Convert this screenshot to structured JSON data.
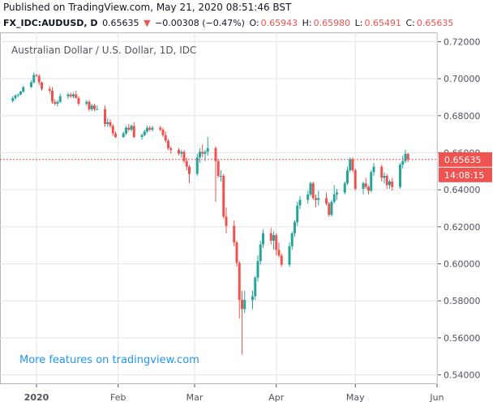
{
  "header": {
    "published": "Published on TradingView.com, May 21, 2020 08:51:46 BST",
    "symbol": "FX_IDC:AUDUSD, D",
    "last": "0.65635",
    "change_arrow": "▼",
    "change": "−0.00308 (−0.47%)",
    "o_label": "O:",
    "o_val": "0.65943",
    "h_label": "H:",
    "h_val": "0.65980",
    "l_label": "L:",
    "l_val": "0.65491",
    "c_label": "C:",
    "c_val": "0.65635"
  },
  "chart_title": "Australian Dollar / U.S. Dollar, 1D, IDC",
  "watermark": "More features on tradingview.com",
  "price_badge": "0.65635",
  "time_badge": "14:08:15",
  "colors": {
    "up": "#26a69a",
    "down": "#ef5350",
    "grid": "#e0e3eb",
    "axis": "#50535e",
    "watermark": "#2196f3",
    "badge": "#ef5350"
  },
  "chart_data": {
    "type": "candlestick",
    "title": "Australian Dollar / U.S. Dollar, 1D, IDC",
    "ylim": [
      0.535,
      0.725
    ],
    "y_ticks": [
      "0.72000",
      "0.70000",
      "0.68000",
      "0.66000",
      "0.64000",
      "0.62000",
      "0.60000",
      "0.58000",
      "0.56000",
      "0.54000"
    ],
    "x_ticks": [
      "2020",
      "Feb",
      "Mar",
      "Apr",
      "May",
      "Jun"
    ],
    "last_price": 0.65635,
    "series": [
      {
        "date": "2019-12-23",
        "o": 0.688,
        "h": 0.6905,
        "l": 0.687,
        "c": 0.6895
      },
      {
        "date": "2019-12-24",
        "o": 0.6895,
        "h": 0.6915,
        "l": 0.6885,
        "c": 0.691
      },
      {
        "date": "2019-12-25",
        "o": 0.691,
        "h": 0.692,
        "l": 0.69,
        "c": 0.6915
      },
      {
        "date": "2019-12-26",
        "o": 0.6915,
        "h": 0.6935,
        "l": 0.691,
        "c": 0.693
      },
      {
        "date": "2019-12-27",
        "o": 0.693,
        "h": 0.696,
        "l": 0.6925,
        "c": 0.6955
      },
      {
        "date": "2019-12-30",
        "o": 0.6955,
        "h": 0.699,
        "l": 0.695,
        "c": 0.698
      },
      {
        "date": "2019-12-31",
        "o": 0.698,
        "h": 0.7032,
        "l": 0.6975,
        "c": 0.702
      },
      {
        "date": "2020-01-01",
        "o": 0.702,
        "h": 0.7025,
        "l": 0.701,
        "c": 0.7015
      },
      {
        "date": "2020-01-02",
        "o": 0.7015,
        "h": 0.7025,
        "l": 0.6965,
        "c": 0.698
      },
      {
        "date": "2020-01-03",
        "o": 0.698,
        "h": 0.6985,
        "l": 0.6935,
        "c": 0.6945
      },
      {
        "date": "2020-01-06",
        "o": 0.6945,
        "h": 0.696,
        "l": 0.692,
        "c": 0.6935
      },
      {
        "date": "2020-01-07",
        "o": 0.6935,
        "h": 0.6955,
        "l": 0.6865,
        "c": 0.6875
      },
      {
        "date": "2020-01-08",
        "o": 0.6875,
        "h": 0.689,
        "l": 0.6855,
        "c": 0.6865
      },
      {
        "date": "2020-01-09",
        "o": 0.6865,
        "h": 0.6885,
        "l": 0.685,
        "c": 0.6875
      },
      {
        "date": "2020-01-10",
        "o": 0.6875,
        "h": 0.692,
        "l": 0.687,
        "c": 0.6905
      },
      {
        "date": "2020-01-13",
        "o": 0.6905,
        "h": 0.6925,
        "l": 0.689,
        "c": 0.6915
      },
      {
        "date": "2020-01-14",
        "o": 0.6915,
        "h": 0.6925,
        "l": 0.6895,
        "c": 0.6905
      },
      {
        "date": "2020-01-15",
        "o": 0.6905,
        "h": 0.6925,
        "l": 0.6895,
        "c": 0.6915
      },
      {
        "date": "2020-01-16",
        "o": 0.6915,
        "h": 0.6935,
        "l": 0.6905,
        "c": 0.6895
      },
      {
        "date": "2020-01-17",
        "o": 0.6895,
        "h": 0.6905,
        "l": 0.6855,
        "c": 0.6865
      },
      {
        "date": "2020-01-20",
        "o": 0.6865,
        "h": 0.6885,
        "l": 0.6855,
        "c": 0.6875
      },
      {
        "date": "2020-01-21",
        "o": 0.6875,
        "h": 0.6885,
        "l": 0.6825,
        "c": 0.6835
      },
      {
        "date": "2020-01-22",
        "o": 0.6835,
        "h": 0.6865,
        "l": 0.6825,
        "c": 0.6855
      },
      {
        "date": "2020-01-23",
        "o": 0.6855,
        "h": 0.6865,
        "l": 0.6825,
        "c": 0.6835
      },
      {
        "date": "2020-01-24",
        "o": 0.6835,
        "h": 0.6855,
        "l": 0.6835,
        "c": 0.6835
      },
      {
        "date": "2020-01-27",
        "o": 0.6835,
        "h": 0.6855,
        "l": 0.674,
        "c": 0.6755
      },
      {
        "date": "2020-01-28",
        "o": 0.6755,
        "h": 0.6785,
        "l": 0.674,
        "c": 0.6765
      },
      {
        "date": "2020-01-29",
        "o": 0.6765,
        "h": 0.678,
        "l": 0.6735,
        "c": 0.6745
      },
      {
        "date": "2020-01-30",
        "o": 0.6745,
        "h": 0.6755,
        "l": 0.669,
        "c": 0.6705
      },
      {
        "date": "2020-01-31",
        "o": 0.6705,
        "h": 0.6715,
        "l": 0.668,
        "c": 0.6685
      },
      {
        "date": "2020-02-03",
        "o": 0.6685,
        "h": 0.6715,
        "l": 0.668,
        "c": 0.6705
      },
      {
        "date": "2020-02-04",
        "o": 0.6705,
        "h": 0.6745,
        "l": 0.6695,
        "c": 0.6735
      },
      {
        "date": "2020-02-05",
        "o": 0.6735,
        "h": 0.6755,
        "l": 0.6715,
        "c": 0.6725
      },
      {
        "date": "2020-02-06",
        "o": 0.6725,
        "h": 0.6755,
        "l": 0.6715,
        "c": 0.6745
      },
      {
        "date": "2020-02-07",
        "o": 0.6745,
        "h": 0.6765,
        "l": 0.668,
        "c": 0.6685
      },
      {
        "date": "2020-02-10",
        "o": 0.6685,
        "h": 0.6705,
        "l": 0.667,
        "c": 0.6695
      },
      {
        "date": "2020-02-11",
        "o": 0.6695,
        "h": 0.6725,
        "l": 0.669,
        "c": 0.6715
      },
      {
        "date": "2020-02-12",
        "o": 0.6715,
        "h": 0.6745,
        "l": 0.6705,
        "c": 0.6735
      },
      {
        "date": "2020-02-13",
        "o": 0.6735,
        "h": 0.6745,
        "l": 0.6715,
        "c": 0.6725
      },
      {
        "date": "2020-02-14",
        "o": 0.6725,
        "h": 0.6745,
        "l": 0.6715,
        "c": 0.6735
      },
      {
        "date": "2020-02-17",
        "o": 0.6735,
        "h": 0.6745,
        "l": 0.6715,
        "c": 0.6725
      },
      {
        "date": "2020-02-18",
        "o": 0.6725,
        "h": 0.6735,
        "l": 0.6685,
        "c": 0.6695
      },
      {
        "date": "2020-02-19",
        "o": 0.6695,
        "h": 0.6715,
        "l": 0.6655,
        "c": 0.6665
      },
      {
        "date": "2020-02-20",
        "o": 0.6665,
        "h": 0.6675,
        "l": 0.6615,
        "c": 0.6625
      },
      {
        "date": "2020-02-21",
        "o": 0.6625,
        "h": 0.6635,
        "l": 0.6595,
        "c": 0.6615
      },
      {
        "date": "2020-02-24",
        "o": 0.6615,
        "h": 0.6625,
        "l": 0.6585,
        "c": 0.6595
      },
      {
        "date": "2020-02-25",
        "o": 0.6595,
        "h": 0.6615,
        "l": 0.6575,
        "c": 0.6605
      },
      {
        "date": "2020-02-26",
        "o": 0.6605,
        "h": 0.6615,
        "l": 0.6545,
        "c": 0.6555
      },
      {
        "date": "2020-02-27",
        "o": 0.6555,
        "h": 0.6575,
        "l": 0.6505,
        "c": 0.6525
      },
      {
        "date": "2020-02-28",
        "o": 0.6525,
        "h": 0.6535,
        "l": 0.6435,
        "c": 0.6485
      },
      {
        "date": "2020-03-02",
        "o": 0.6485,
        "h": 0.6595,
        "l": 0.6475,
        "c": 0.6575
      },
      {
        "date": "2020-03-03",
        "o": 0.6575,
        "h": 0.6625,
        "l": 0.6545,
        "c": 0.6605
      },
      {
        "date": "2020-03-04",
        "o": 0.6605,
        "h": 0.6645,
        "l": 0.6575,
        "c": 0.6595
      },
      {
        "date": "2020-03-05",
        "o": 0.6595,
        "h": 0.6615,
        "l": 0.6555,
        "c": 0.6605
      },
      {
        "date": "2020-03-06",
        "o": 0.6605,
        "h": 0.6685,
        "l": 0.6585,
        "c": 0.6625
      },
      {
        "date": "2020-03-09",
        "o": 0.6625,
        "h": 0.6635,
        "l": 0.6335,
        "c": 0.6555
      },
      {
        "date": "2020-03-10",
        "o": 0.6555,
        "h": 0.6565,
        "l": 0.6465,
        "c": 0.6475
      },
      {
        "date": "2020-03-11",
        "o": 0.6475,
        "h": 0.6505,
        "l": 0.6445,
        "c": 0.6475
      },
      {
        "date": "2020-03-12",
        "o": 0.6475,
        "h": 0.6485,
        "l": 0.6245,
        "c": 0.6255
      },
      {
        "date": "2020-03-13",
        "o": 0.6255,
        "h": 0.6305,
        "l": 0.6165,
        "c": 0.6205
      },
      {
        "date": "2020-03-16",
        "o": 0.6205,
        "h": 0.6235,
        "l": 0.6095,
        "c": 0.6115
      },
      {
        "date": "2020-03-17",
        "o": 0.6115,
        "h": 0.6125,
        "l": 0.5985,
        "c": 0.6005
      },
      {
        "date": "2020-03-18",
        "o": 0.6005,
        "h": 0.6015,
        "l": 0.5705,
        "c": 0.5805
      },
      {
        "date": "2020-03-19",
        "o": 0.5805,
        "h": 0.5855,
        "l": 0.551,
        "c": 0.5755
      },
      {
        "date": "2020-03-20",
        "o": 0.5755,
        "h": 0.5855,
        "l": 0.5735,
        "c": 0.5805
      },
      {
        "date": "2020-03-23",
        "o": 0.5805,
        "h": 0.5855,
        "l": 0.5755,
        "c": 0.5825
      },
      {
        "date": "2020-03-24",
        "o": 0.5825,
        "h": 0.5935,
        "l": 0.5805,
        "c": 0.5925
      },
      {
        "date": "2020-03-25",
        "o": 0.5925,
        "h": 0.6045,
        "l": 0.5905,
        "c": 0.6015
      },
      {
        "date": "2020-03-26",
        "o": 0.6015,
        "h": 0.6125,
        "l": 0.5995,
        "c": 0.6105
      },
      {
        "date": "2020-03-27",
        "o": 0.6105,
        "h": 0.6185,
        "l": 0.6085,
        "c": 0.6165
      },
      {
        "date": "2020-03-30",
        "o": 0.6165,
        "h": 0.6195,
        "l": 0.6105,
        "c": 0.6125
      },
      {
        "date": "2020-03-31",
        "o": 0.6125,
        "h": 0.6175,
        "l": 0.6075,
        "c": 0.6155
      },
      {
        "date": "2020-04-01",
        "o": 0.6155,
        "h": 0.6165,
        "l": 0.6045,
        "c": 0.6075
      },
      {
        "date": "2020-04-02",
        "o": 0.6075,
        "h": 0.6115,
        "l": 0.6035,
        "c": 0.6045
      },
      {
        "date": "2020-04-03",
        "o": 0.6045,
        "h": 0.6055,
        "l": 0.5985,
        "c": 0.5995
      },
      {
        "date": "2020-04-06",
        "o": 0.5995,
        "h": 0.6115,
        "l": 0.5985,
        "c": 0.6095
      },
      {
        "date": "2020-04-07",
        "o": 0.6095,
        "h": 0.6175,
        "l": 0.6075,
        "c": 0.6165
      },
      {
        "date": "2020-04-08",
        "o": 0.6165,
        "h": 0.6235,
        "l": 0.6145,
        "c": 0.6225
      },
      {
        "date": "2020-04-09",
        "o": 0.6225,
        "h": 0.6335,
        "l": 0.6205,
        "c": 0.6315
      },
      {
        "date": "2020-04-10",
        "o": 0.6315,
        "h": 0.6365,
        "l": 0.6295,
        "c": 0.6345
      },
      {
        "date": "2020-04-13",
        "o": 0.6345,
        "h": 0.6395,
        "l": 0.6325,
        "c": 0.6375
      },
      {
        "date": "2020-04-14",
        "o": 0.6375,
        "h": 0.6445,
        "l": 0.6365,
        "c": 0.6435
      },
      {
        "date": "2020-04-15",
        "o": 0.6435,
        "h": 0.6445,
        "l": 0.6345,
        "c": 0.6355
      },
      {
        "date": "2020-04-16",
        "o": 0.6355,
        "h": 0.6375,
        "l": 0.6305,
        "c": 0.6345
      },
      {
        "date": "2020-04-17",
        "o": 0.6345,
        "h": 0.6395,
        "l": 0.6315,
        "c": 0.6355
      },
      {
        "date": "2020-04-20",
        "o": 0.6355,
        "h": 0.6385,
        "l": 0.6315,
        "c": 0.6325
      },
      {
        "date": "2020-04-21",
        "o": 0.6325,
        "h": 0.6335,
        "l": 0.6255,
        "c": 0.6265
      },
      {
        "date": "2020-04-22",
        "o": 0.6265,
        "h": 0.6345,
        "l": 0.6255,
        "c": 0.6335
      },
      {
        "date": "2020-04-23",
        "o": 0.6335,
        "h": 0.6425,
        "l": 0.6325,
        "c": 0.6375
      },
      {
        "date": "2020-04-24",
        "o": 0.6375,
        "h": 0.6405,
        "l": 0.6345,
        "c": 0.6385
      },
      {
        "date": "2020-04-27",
        "o": 0.6385,
        "h": 0.6445,
        "l": 0.6375,
        "c": 0.6435
      },
      {
        "date": "2020-04-28",
        "o": 0.6435,
        "h": 0.6525,
        "l": 0.6425,
        "c": 0.6505
      },
      {
        "date": "2020-04-29",
        "o": 0.6505,
        "h": 0.6575,
        "l": 0.6495,
        "c": 0.6565
      },
      {
        "date": "2020-04-30",
        "o": 0.6565,
        "h": 0.6575,
        "l": 0.6495,
        "c": 0.6505
      },
      {
        "date": "2020-05-01",
        "o": 0.6505,
        "h": 0.6515,
        "l": 0.6395,
        "c": 0.6405
      },
      {
        "date": "2020-05-04",
        "o": 0.6405,
        "h": 0.6445,
        "l": 0.6375,
        "c": 0.6435
      },
      {
        "date": "2020-05-05",
        "o": 0.6435,
        "h": 0.6465,
        "l": 0.6405,
        "c": 0.6415
      },
      {
        "date": "2020-05-06",
        "o": 0.6415,
        "h": 0.6425,
        "l": 0.6375,
        "c": 0.6395
      },
      {
        "date": "2020-05-07",
        "o": 0.6395,
        "h": 0.6505,
        "l": 0.6385,
        "c": 0.6495
      },
      {
        "date": "2020-05-08",
        "o": 0.6495,
        "h": 0.6545,
        "l": 0.6475,
        "c": 0.6525
      },
      {
        "date": "2020-05-11",
        "o": 0.6525,
        "h": 0.6535,
        "l": 0.6445,
        "c": 0.6465
      },
      {
        "date": "2020-05-12",
        "o": 0.6465,
        "h": 0.6495,
        "l": 0.6435,
        "c": 0.6475
      },
      {
        "date": "2020-05-13",
        "o": 0.6475,
        "h": 0.6485,
        "l": 0.6405,
        "c": 0.6425
      },
      {
        "date": "2020-05-14",
        "o": 0.6425,
        "h": 0.6455,
        "l": 0.6405,
        "c": 0.6445
      },
      {
        "date": "2020-05-15",
        "o": 0.6445,
        "h": 0.6465,
        "l": 0.6395,
        "c": 0.6415
      },
      {
        "date": "2020-05-18",
        "o": 0.6415,
        "h": 0.6545,
        "l": 0.6405,
        "c": 0.6535
      },
      {
        "date": "2020-05-19",
        "o": 0.6535,
        "h": 0.6585,
        "l": 0.6515,
        "c": 0.6555
      },
      {
        "date": "2020-05-20",
        "o": 0.6555,
        "h": 0.6615,
        "l": 0.6545,
        "c": 0.6594
      },
      {
        "date": "2020-05-21",
        "o": 0.65943,
        "h": 0.6598,
        "l": 0.65491,
        "c": 0.65635
      }
    ]
  }
}
